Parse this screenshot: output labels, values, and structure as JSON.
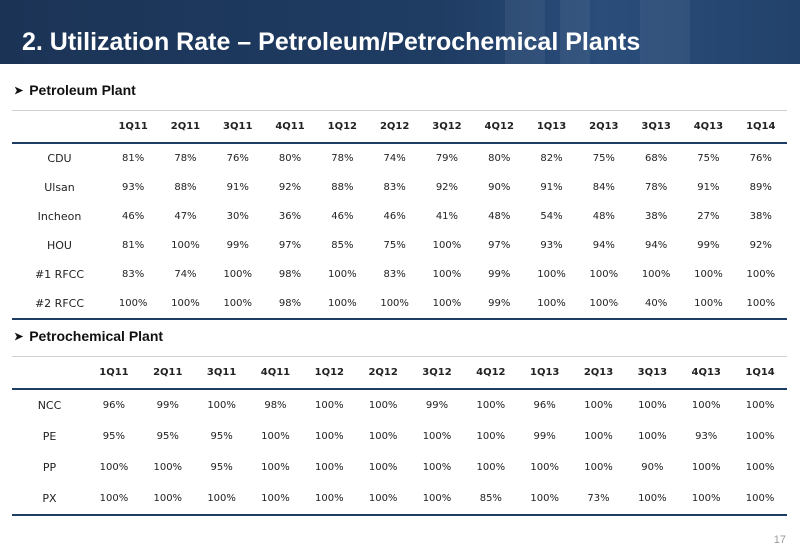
{
  "title": "2. Utilization Rate – Petroleum/Petrochemical Plants",
  "page_number": "17",
  "colors": {
    "header_bg": "#1f3c63",
    "rule": "#1f3c63"
  },
  "petroleum": {
    "title": "Petroleum Plant",
    "columns": [
      "1Q11",
      "2Q11",
      "3Q11",
      "4Q11",
      "1Q12",
      "2Q12",
      "3Q12",
      "4Q12",
      "1Q13",
      "2Q13",
      "3Q13",
      "4Q13",
      "1Q14"
    ],
    "rows": [
      {
        "label": "CDU",
        "values": [
          "81%",
          "78%",
          "76%",
          "80%",
          "78%",
          "74%",
          "79%",
          "80%",
          "82%",
          "75%",
          "68%",
          "75%",
          "76%"
        ]
      },
      {
        "label": "Ulsan",
        "values": [
          "93%",
          "88%",
          "91%",
          "92%",
          "88%",
          "83%",
          "92%",
          "90%",
          "91%",
          "84%",
          "78%",
          "91%",
          "89%"
        ]
      },
      {
        "label": "Incheon",
        "values": [
          "46%",
          "47%",
          "30%",
          "36%",
          "46%",
          "46%",
          "41%",
          "48%",
          "54%",
          "48%",
          "38%",
          "27%",
          "38%"
        ]
      },
      {
        "label": "HOU",
        "values": [
          "81%",
          "100%",
          "99%",
          "97%",
          "85%",
          "75%",
          "100%",
          "97%",
          "93%",
          "94%",
          "94%",
          "99%",
          "92%"
        ]
      },
      {
        "label": "#1 RFCC",
        "values": [
          "83%",
          "74%",
          "100%",
          "98%",
          "100%",
          "83%",
          "100%",
          "99%",
          "100%",
          "100%",
          "100%",
          "100%",
          "100%"
        ]
      },
      {
        "label": "#2 RFCC",
        "values": [
          "100%",
          "100%",
          "100%",
          "98%",
          "100%",
          "100%",
          "100%",
          "99%",
          "100%",
          "100%",
          "40%",
          "100%",
          "100%"
        ]
      }
    ]
  },
  "petrochemical": {
    "title": "Petrochemical Plant",
    "columns": [
      "1Q11",
      "2Q11",
      "3Q11",
      "4Q11",
      "1Q12",
      "2Q12",
      "3Q12",
      "4Q12",
      "1Q13",
      "2Q13",
      "3Q13",
      "4Q13",
      "1Q14"
    ],
    "rows": [
      {
        "label": "NCC",
        "values": [
          "96%",
          "99%",
          "100%",
          "98%",
          "100%",
          "100%",
          "99%",
          "100%",
          "96%",
          "100%",
          "100%",
          "100%",
          "100%"
        ]
      },
      {
        "label": "PE",
        "values": [
          "95%",
          "95%",
          "95%",
          "100%",
          "100%",
          "100%",
          "100%",
          "100%",
          "99%",
          "100%",
          "100%",
          "93%",
          "100%"
        ]
      },
      {
        "label": "PP",
        "values": [
          "100%",
          "100%",
          "95%",
          "100%",
          "100%",
          "100%",
          "100%",
          "100%",
          "100%",
          "100%",
          "90%",
          "100%",
          "100%"
        ]
      },
      {
        "label": "PX",
        "values": [
          "100%",
          "100%",
          "100%",
          "100%",
          "100%",
          "100%",
          "100%",
          "85%",
          "100%",
          "73%",
          "100%",
          "100%",
          "100%"
        ]
      }
    ]
  }
}
